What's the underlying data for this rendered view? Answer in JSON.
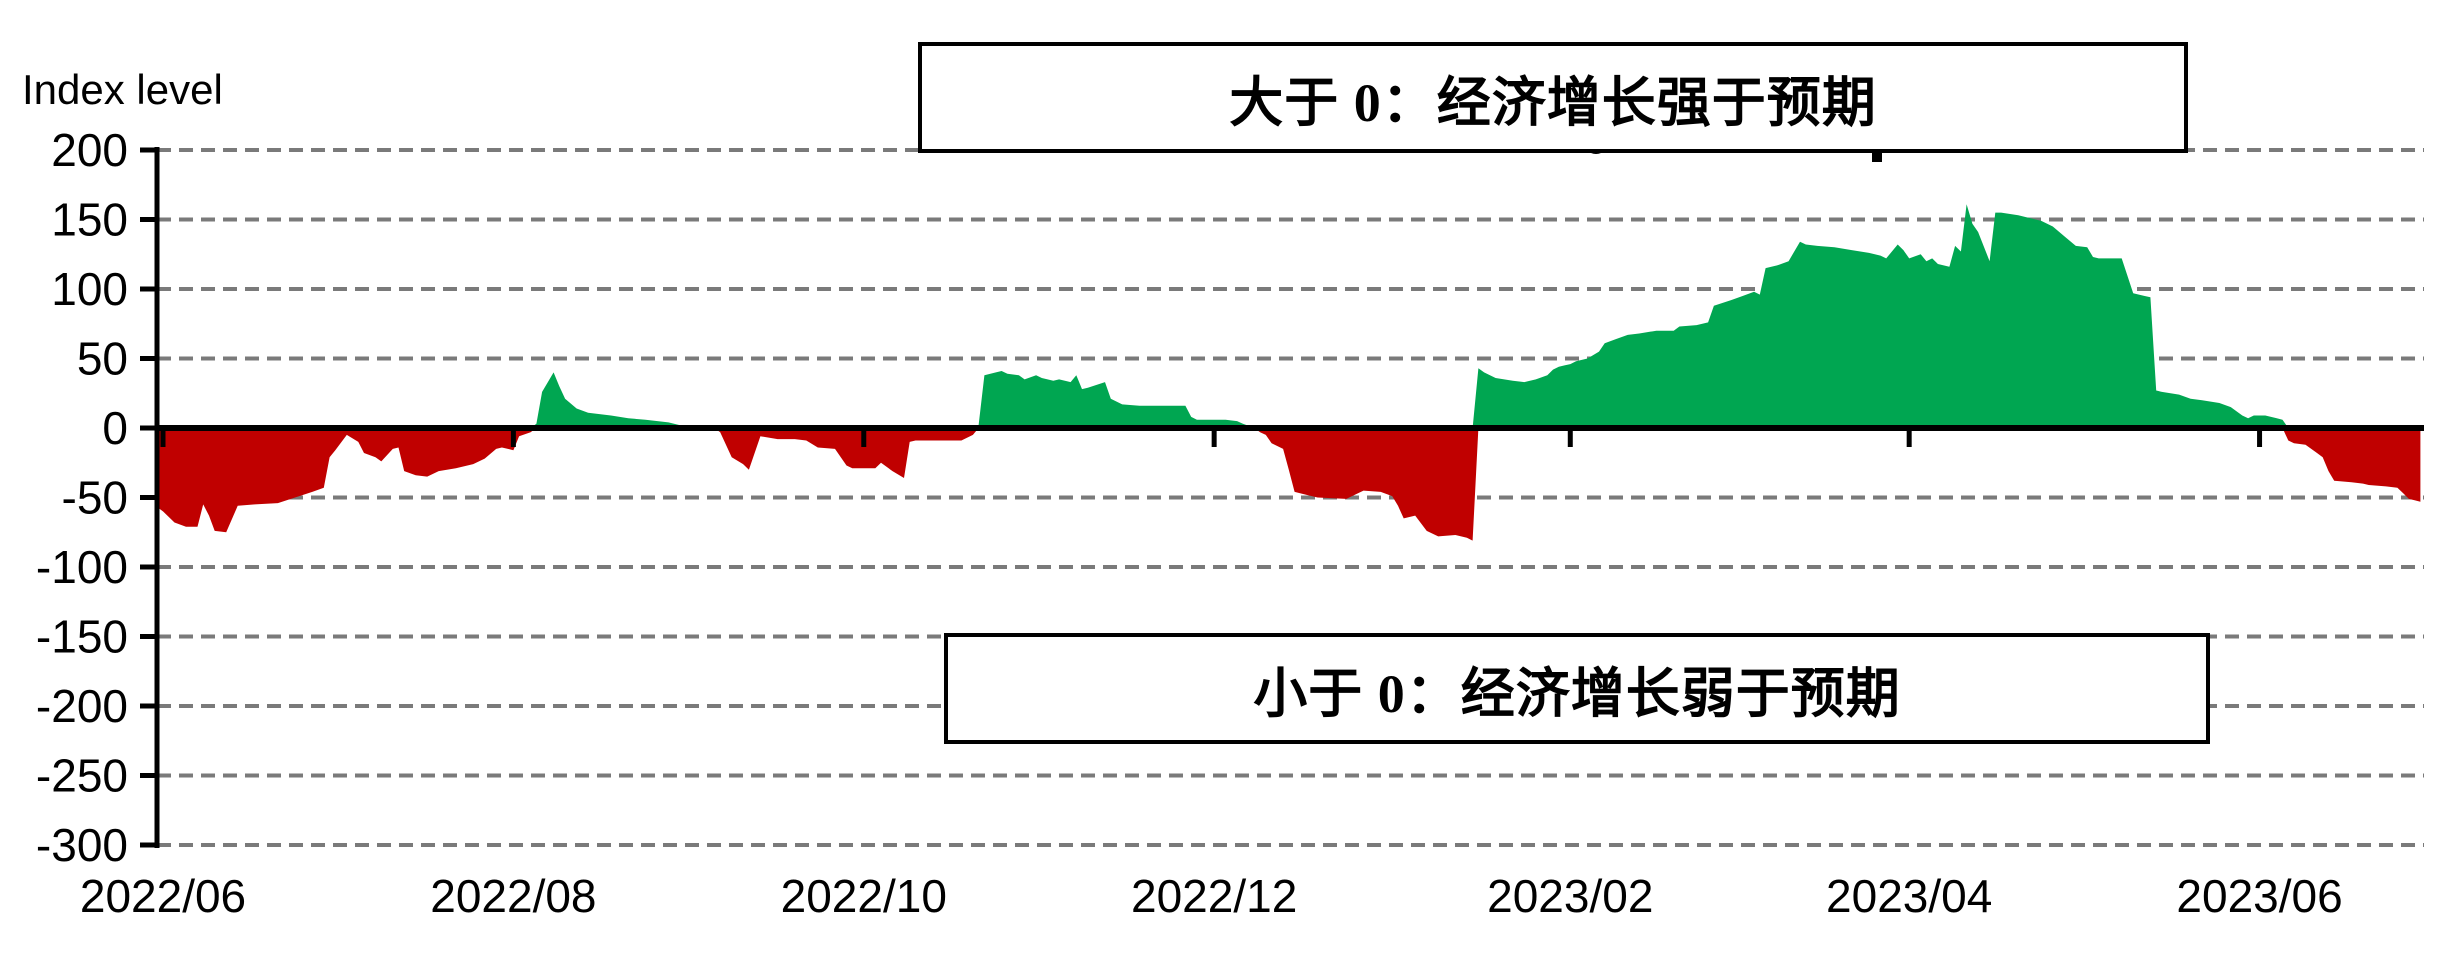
{
  "annotations": {
    "above": "大于 0：经济增长强于预期",
    "below": "小于 0：经济增长弱于预期"
  },
  "chart_data": {
    "type": "area",
    "title": "",
    "ylabel": "Index level",
    "xlabel": "",
    "ylim": [
      -300,
      200
    ],
    "grid": "horizontal-dashed",
    "legend": "none",
    "colors": {
      "positive": "#00A651",
      "negative": "#C00000",
      "gridline": "#7a7a7a",
      "axis": "#000000"
    },
    "y_ticks": [
      200,
      150,
      100,
      50,
      0,
      -50,
      -100,
      -150,
      -200,
      -250,
      -300
    ],
    "y_tick_labels": [
      "200",
      "150",
      "100",
      "50",
      "0",
      "-50",
      "-100",
      "-150",
      "-200",
      "-250",
      "-300"
    ],
    "x_tick_dates": [
      "2022-06-01",
      "2022-08-01",
      "2022-10-01",
      "2022-12-01",
      "2023-02-01",
      "2023-04-01",
      "2023-06-01"
    ],
    "x_tick_labels": [
      "2022/06",
      "2022/08",
      "2022/10",
      "2022/12",
      "2023/02",
      "2023/04",
      "2023/06"
    ],
    "points": [
      [
        "2022-05-31",
        -57
      ],
      [
        "2022-06-01",
        -60
      ],
      [
        "2022-06-03",
        -68
      ],
      [
        "2022-06-05",
        -71
      ],
      [
        "2022-06-07",
        -71
      ],
      [
        "2022-06-08",
        -55
      ],
      [
        "2022-06-09",
        -63
      ],
      [
        "2022-06-10",
        -74
      ],
      [
        "2022-06-12",
        -75
      ],
      [
        "2022-06-14",
        -56
      ],
      [
        "2022-06-17",
        -55
      ],
      [
        "2022-06-21",
        -54
      ],
      [
        "2022-06-24",
        -50
      ],
      [
        "2022-06-27",
        -46
      ],
      [
        "2022-06-29",
        -43
      ],
      [
        "2022-06-30",
        -21
      ],
      [
        "2022-07-01",
        -16
      ],
      [
        "2022-07-03",
        -5
      ],
      [
        "2022-07-05",
        -10
      ],
      [
        "2022-07-06",
        -18
      ],
      [
        "2022-07-08",
        -21
      ],
      [
        "2022-07-09",
        -24
      ],
      [
        "2022-07-11",
        -15
      ],
      [
        "2022-07-12",
        -14
      ],
      [
        "2022-07-13",
        -31
      ],
      [
        "2022-07-15",
        -34
      ],
      [
        "2022-07-17",
        -35
      ],
      [
        "2022-07-19",
        -31
      ],
      [
        "2022-07-22",
        -29
      ],
      [
        "2022-07-25",
        -26
      ],
      [
        "2022-07-27",
        -22
      ],
      [
        "2022-07-29",
        -15
      ],
      [
        "2022-07-30",
        -14
      ],
      [
        "2022-08-01",
        -16
      ],
      [
        "2022-08-02",
        -6
      ],
      [
        "2022-08-04",
        -3
      ],
      [
        "2022-08-05",
        3
      ],
      [
        "2022-08-06",
        26
      ],
      [
        "2022-08-08",
        40
      ],
      [
        "2022-08-09",
        30
      ],
      [
        "2022-08-10",
        21
      ],
      [
        "2022-08-12",
        14
      ],
      [
        "2022-08-14",
        11
      ],
      [
        "2022-08-18",
        9
      ],
      [
        "2022-08-21",
        7
      ],
      [
        "2022-08-24",
        6
      ],
      [
        "2022-08-28",
        4
      ],
      [
        "2022-08-31",
        1
      ],
      [
        "2022-09-02",
        0
      ],
      [
        "2022-09-05",
        0
      ],
      [
        "2022-09-06",
        -3
      ],
      [
        "2022-09-08",
        -21
      ],
      [
        "2022-09-10",
        -26
      ],
      [
        "2022-09-11",
        -30
      ],
      [
        "2022-09-13",
        -6
      ],
      [
        "2022-09-16",
        -8
      ],
      [
        "2022-09-19",
        -8
      ],
      [
        "2022-09-21",
        -9
      ],
      [
        "2022-09-23",
        -14
      ],
      [
        "2022-09-26",
        -15
      ],
      [
        "2022-09-28",
        -27
      ],
      [
        "2022-09-29",
        -29
      ],
      [
        "2022-10-03",
        -29
      ],
      [
        "2022-10-04",
        -25
      ],
      [
        "2022-10-06",
        -31
      ],
      [
        "2022-10-08",
        -36
      ],
      [
        "2022-10-09",
        -10
      ],
      [
        "2022-10-10",
        -9
      ],
      [
        "2022-10-14",
        -9
      ],
      [
        "2022-10-18",
        -9
      ],
      [
        "2022-10-20",
        -5
      ],
      [
        "2022-10-21",
        2
      ],
      [
        "2022-10-22",
        38
      ],
      [
        "2022-10-24",
        40
      ],
      [
        "2022-10-25",
        41
      ],
      [
        "2022-10-26",
        39
      ],
      [
        "2022-10-28",
        38
      ],
      [
        "2022-10-29",
        35
      ],
      [
        "2022-10-31",
        38
      ],
      [
        "2022-11-01",
        36
      ],
      [
        "2022-11-03",
        34
      ],
      [
        "2022-11-04",
        35
      ],
      [
        "2022-11-06",
        33
      ],
      [
        "2022-11-07",
        38
      ],
      [
        "2022-11-08",
        28
      ],
      [
        "2022-11-09",
        29
      ],
      [
        "2022-11-12",
        33
      ],
      [
        "2022-11-13",
        21
      ],
      [
        "2022-11-15",
        17
      ],
      [
        "2022-11-18",
        16
      ],
      [
        "2022-11-22",
        16
      ],
      [
        "2022-11-26",
        16
      ],
      [
        "2022-11-27",
        8
      ],
      [
        "2022-11-28",
        6
      ],
      [
        "2022-12-03",
        6
      ],
      [
        "2022-12-05",
        5
      ],
      [
        "2022-12-06",
        3
      ],
      [
        "2022-12-08",
        0
      ],
      [
        "2022-12-09",
        -3
      ],
      [
        "2022-12-10",
        -5
      ],
      [
        "2022-12-11",
        -11
      ],
      [
        "2022-12-13",
        -15
      ],
      [
        "2022-12-14",
        -30
      ],
      [
        "2022-12-15",
        -46
      ],
      [
        "2022-12-17",
        -48
      ],
      [
        "2022-12-19",
        -50
      ],
      [
        "2022-12-24",
        -51
      ],
      [
        "2022-12-27",
        -45
      ],
      [
        "2022-12-30",
        -46
      ],
      [
        "2023-01-01",
        -49
      ],
      [
        "2023-01-02",
        -56
      ],
      [
        "2023-01-03",
        -65
      ],
      [
        "2023-01-05",
        -63
      ],
      [
        "2023-01-07",
        -74
      ],
      [
        "2023-01-09",
        -78
      ],
      [
        "2023-01-12",
        -77
      ],
      [
        "2023-01-14",
        -79
      ],
      [
        "2023-01-15",
        -81
      ],
      [
        "2023-01-16",
        43
      ],
      [
        "2023-01-17",
        40
      ],
      [
        "2023-01-19",
        36
      ],
      [
        "2023-01-22",
        34
      ],
      [
        "2023-01-24",
        33
      ],
      [
        "2023-01-26",
        35
      ],
      [
        "2023-01-28",
        38
      ],
      [
        "2023-01-29",
        42
      ],
      [
        "2023-01-30",
        44
      ],
      [
        "2023-01-31",
        45
      ],
      [
        "2023-02-01",
        46
      ],
      [
        "2023-02-02",
        48
      ],
      [
        "2023-02-04",
        50
      ],
      [
        "2023-02-06",
        55
      ],
      [
        "2023-02-07",
        61
      ],
      [
        "2023-02-09",
        64
      ],
      [
        "2023-02-11",
        67
      ],
      [
        "2023-02-13",
        68
      ],
      [
        "2023-02-16",
        70
      ],
      [
        "2023-02-19",
        70
      ],
      [
        "2023-02-20",
        73
      ],
      [
        "2023-02-23",
        74
      ],
      [
        "2023-02-25",
        76
      ],
      [
        "2023-02-26",
        88
      ],
      [
        "2023-03-01",
        92
      ],
      [
        "2023-03-03",
        95
      ],
      [
        "2023-03-05",
        98
      ],
      [
        "2023-03-06",
        96
      ],
      [
        "2023-03-07",
        115
      ],
      [
        "2023-03-09",
        117
      ],
      [
        "2023-03-11",
        120
      ],
      [
        "2023-03-13",
        134
      ],
      [
        "2023-03-14",
        132
      ],
      [
        "2023-03-16",
        131
      ],
      [
        "2023-03-19",
        130
      ],
      [
        "2023-03-22",
        128
      ],
      [
        "2023-03-25",
        126
      ],
      [
        "2023-03-27",
        124
      ],
      [
        "2023-03-28",
        122
      ],
      [
        "2023-03-30",
        132
      ],
      [
        "2023-03-31",
        128
      ],
      [
        "2023-04-01",
        122
      ],
      [
        "2023-04-03",
        125
      ],
      [
        "2023-04-04",
        120
      ],
      [
        "2023-04-05",
        122
      ],
      [
        "2023-04-06",
        118
      ],
      [
        "2023-04-08",
        116
      ],
      [
        "2023-04-09",
        131
      ],
      [
        "2023-04-10",
        127
      ],
      [
        "2023-04-11",
        161
      ],
      [
        "2023-04-12",
        147
      ],
      [
        "2023-04-13",
        141
      ],
      [
        "2023-04-15",
        120
      ],
      [
        "2023-04-16",
        155
      ],
      [
        "2023-04-17",
        155
      ],
      [
        "2023-04-20",
        153
      ],
      [
        "2023-04-24",
        149
      ],
      [
        "2023-04-26",
        145
      ],
      [
        "2023-04-28",
        138
      ],
      [
        "2023-04-30",
        131
      ],
      [
        "2023-05-02",
        130
      ],
      [
        "2023-05-03",
        123
      ],
      [
        "2023-05-04",
        122
      ],
      [
        "2023-05-08",
        122
      ],
      [
        "2023-05-10",
        97
      ],
      [
        "2023-05-11",
        96
      ],
      [
        "2023-05-12",
        95
      ],
      [
        "2023-05-13",
        94
      ],
      [
        "2023-05-14",
        27
      ],
      [
        "2023-05-15",
        26
      ],
      [
        "2023-05-18",
        24
      ],
      [
        "2023-05-20",
        21
      ],
      [
        "2023-05-22",
        20
      ],
      [
        "2023-05-25",
        18
      ],
      [
        "2023-05-27",
        15
      ],
      [
        "2023-05-29",
        9
      ],
      [
        "2023-05-30",
        7
      ],
      [
        "2023-05-31",
        9
      ],
      [
        "2023-06-02",
        9
      ],
      [
        "2023-06-04",
        7
      ],
      [
        "2023-06-05",
        6
      ],
      [
        "2023-06-06",
        -9
      ],
      [
        "2023-06-07",
        -11
      ],
      [
        "2023-06-09",
        -12
      ],
      [
        "2023-06-11",
        -18
      ],
      [
        "2023-06-12",
        -21
      ],
      [
        "2023-06-13",
        -31
      ],
      [
        "2023-06-14",
        -38
      ],
      [
        "2023-06-17",
        -39
      ],
      [
        "2023-06-19",
        -40
      ],
      [
        "2023-06-20",
        -41
      ],
      [
        "2023-06-23",
        -42
      ],
      [
        "2023-06-25",
        -43
      ],
      [
        "2023-06-26",
        -47
      ],
      [
        "2023-06-27",
        -51
      ],
      [
        "2023-06-28",
        -52
      ],
      [
        "2023-06-29",
        -53
      ]
    ]
  }
}
